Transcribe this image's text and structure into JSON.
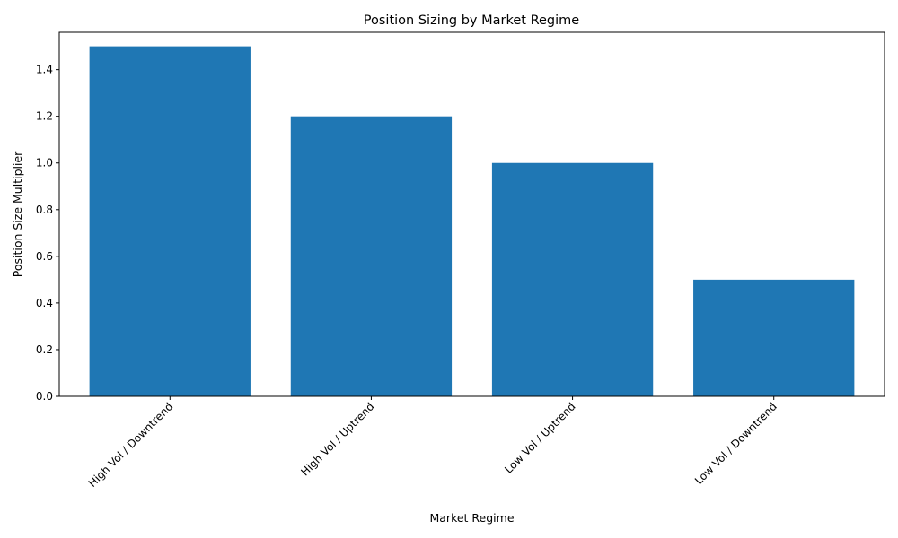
{
  "chart_data": {
    "type": "bar",
    "title": "Position Sizing by Market Regime",
    "xlabel": "Market Regime",
    "ylabel": "Position Size Multiplier",
    "categories": [
      "High Vol / Downtrend",
      "High Vol / Uptrend",
      "Low Vol / Uptrend",
      "Low Vol / Downtrend"
    ],
    "values": [
      1.5,
      1.2,
      1.0,
      0.5
    ],
    "ylim": [
      0,
      1.56
    ],
    "yticks": [
      0.0,
      0.2,
      0.4,
      0.6,
      0.8,
      1.0,
      1.2,
      1.4
    ],
    "ytick_labels": [
      "0.0",
      "0.2",
      "0.4",
      "0.6",
      "0.8",
      "1.0",
      "1.2",
      "1.4"
    ],
    "bar_color": "#1f77b4",
    "grid": false,
    "legend": "none"
  }
}
